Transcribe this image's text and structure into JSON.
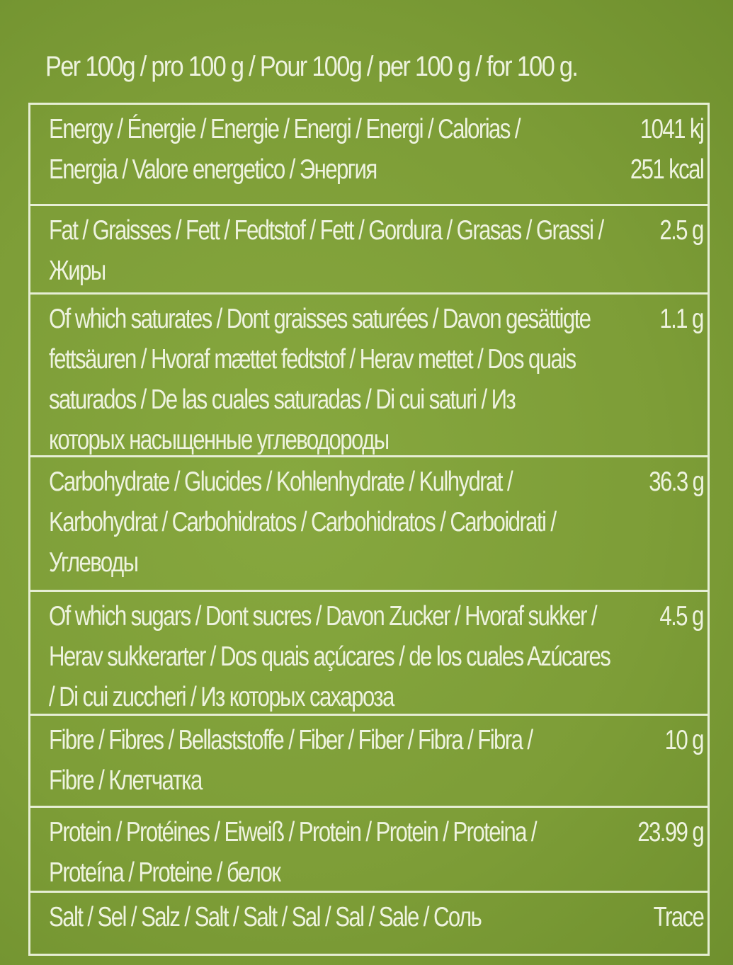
{
  "header": "Per 100g / pro 100 g / Pour 100g / per 100 g / for 100 g.",
  "colors": {
    "background": "#7d9d37",
    "text": "#eef3df"
  },
  "rows": [
    {
      "label": "Energy / Énergie / Energie / Energi / Energi / Calorias / Energia / Valore energetico / Энергия",
      "value": "1041 kj\n251 kcal"
    },
    {
      "label": "Fat / Graisses / Fett / Fedtstof / Fett / Gordura / Grasas / Grassi / Жиры",
      "value": "2.5 g"
    },
    {
      "label": "Of which saturates / Dont graisses saturées / Davon gesättigte fettsäuren / Hvoraf mættet fedtstof / Herav mettet / Dos quais saturados / De las cuales saturadas / Di cui saturi / Из которых насыщенные углеводороды",
      "value": "1.1 g"
    },
    {
      "label": "Carbohydrate / Glucides / Kohlenhydrate / Kulhydrat / Karbohydrat / Carbohidratos / Carbohidratos / Carboidrati / Углеводы",
      "value": "36.3 g"
    },
    {
      "label": "Of which sugars / Dont sucres / Davon Zucker / Hvoraf sukker / Herav sukkerarter / Dos quais açúcares / de los cuales Azúcares / Di cui zuccheri / Из которых сахароза",
      "value": "4.5 g"
    },
    {
      "label": "Fibre / Fibres / Bellaststoffe / Fiber / Fiber / Fibra / Fibra / Fibre / Клетчатка",
      "value": "10 g"
    },
    {
      "label": "Protein / Protéines / Eiweiß / Protein / Protein / Proteina / Proteína / Proteine / белок",
      "value": "23.99 g"
    },
    {
      "label": "Salt / Sel / Salz / Salt / Salt / Sal / Sal / Sale / Соль",
      "value": "Trace"
    }
  ]
}
